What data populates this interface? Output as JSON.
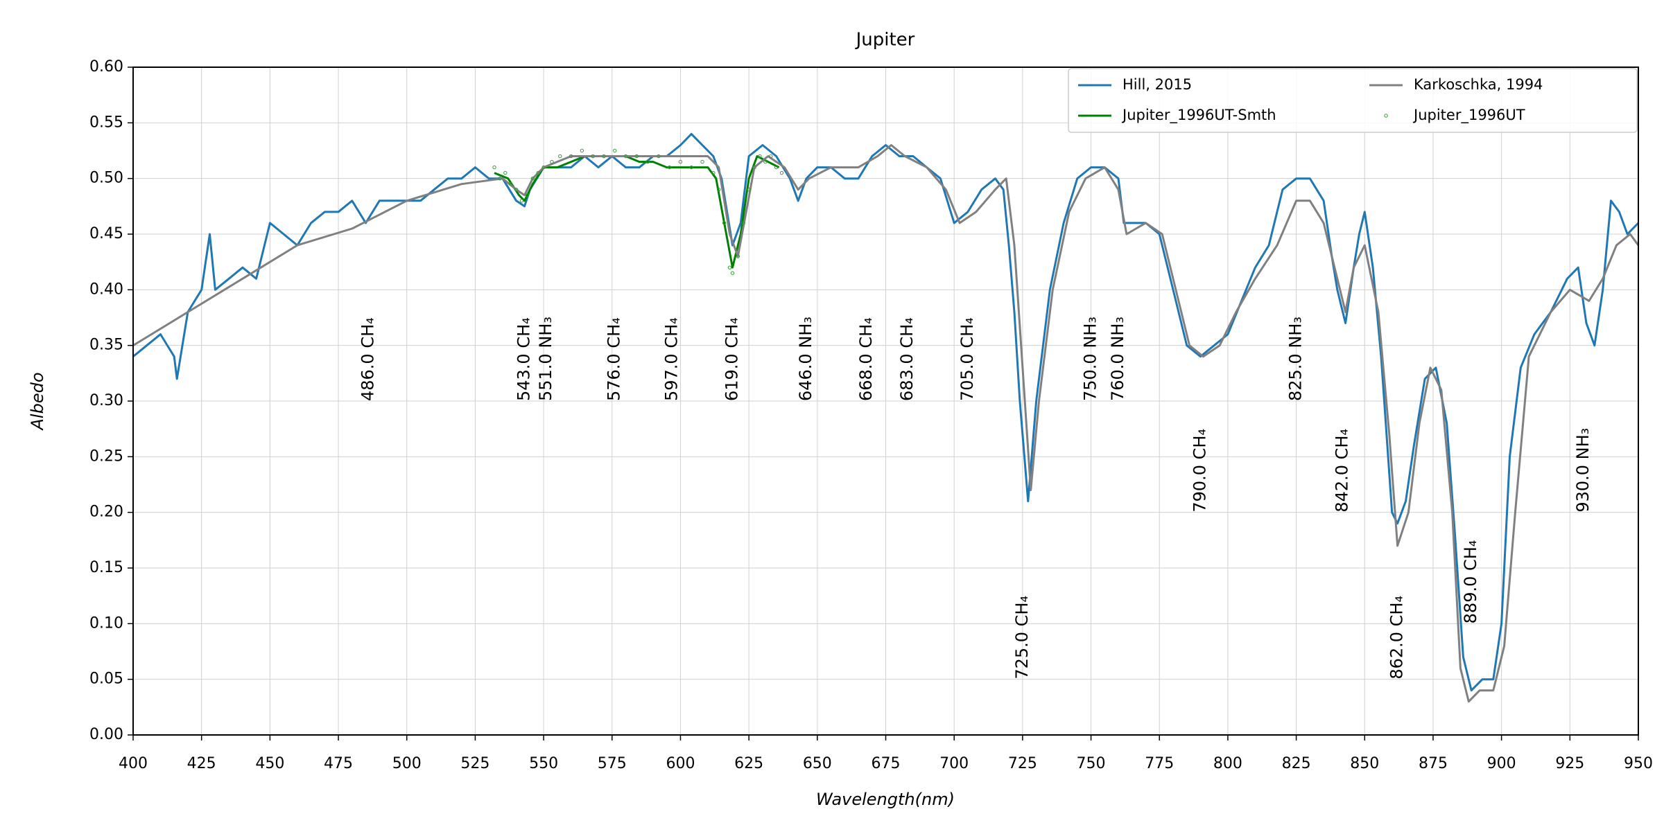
{
  "chart_data": {
    "type": "line",
    "title": "Jupiter",
    "xlabel": "Wavelength(nm)",
    "ylabel": "Albedo",
    "xlim": [
      400,
      950
    ],
    "ylim": [
      0,
      0.6
    ],
    "xticks": [
      400,
      425,
      450,
      475,
      500,
      525,
      550,
      575,
      600,
      625,
      650,
      675,
      700,
      725,
      750,
      775,
      800,
      825,
      850,
      875,
      900,
      925,
      950
    ],
    "yticks": [
      {
        "value": 0,
        "label": "0.00"
      },
      {
        "value": 0.05,
        "label": "0.05"
      },
      {
        "value": 0.1,
        "label": "0.10"
      },
      {
        "value": 0.15,
        "label": "0.15"
      },
      {
        "value": 0.2,
        "label": "0.20"
      },
      {
        "value": 0.25,
        "label": "0.25"
      },
      {
        "value": 0.3,
        "label": "0.30"
      },
      {
        "value": 0.35,
        "label": "0.35"
      },
      {
        "value": 0.4,
        "label": "0.40"
      },
      {
        "value": 0.45,
        "label": "0.45"
      },
      {
        "value": 0.5,
        "label": "0.50"
      },
      {
        "value": 0.55,
        "label": "0.55"
      },
      {
        "value": 0.6,
        "label": "0.60"
      }
    ],
    "grid": true,
    "legend": "upper right",
    "series": [
      {
        "name": "Hill, 2015",
        "color": "#1f77b4",
        "type": "line",
        "x": [
          400,
          405,
          410,
          415,
          416,
          420,
          425,
          428,
          430,
          435,
          440,
          445,
          450,
          455,
          460,
          465,
          470,
          475,
          480,
          485,
          490,
          495,
          500,
          505,
          510,
          515,
          520,
          525,
          530,
          535,
          540,
          543,
          545,
          550,
          555,
          560,
          565,
          570,
          575,
          580,
          585,
          590,
          595,
          600,
          604,
          608,
          612,
          615,
          619,
          622,
          625,
          630,
          635,
          640,
          643,
          646,
          650,
          655,
          660,
          665,
          670,
          675,
          680,
          685,
          690,
          695,
          700,
          705,
          710,
          715,
          718,
          720,
          722,
          724,
          727,
          730,
          735,
          740,
          745,
          750,
          755,
          760,
          762,
          765,
          770,
          775,
          780,
          785,
          790,
          795,
          800,
          805,
          810,
          815,
          820,
          825,
          830,
          835,
          838,
          840,
          843,
          846,
          848,
          850,
          853,
          856,
          860,
          862,
          865,
          868,
          872,
          876,
          880,
          883,
          886,
          889,
          893,
          897,
          900,
          903,
          907,
          912,
          918,
          924,
          928,
          931,
          934,
          937,
          940,
          943,
          946,
          950
        ],
        "values": [
          0.34,
          0.35,
          0.36,
          0.34,
          0.32,
          0.38,
          0.4,
          0.45,
          0.4,
          0.41,
          0.42,
          0.41,
          0.46,
          0.45,
          0.44,
          0.46,
          0.47,
          0.47,
          0.48,
          0.46,
          0.48,
          0.48,
          0.48,
          0.48,
          0.49,
          0.5,
          0.5,
          0.51,
          0.5,
          0.5,
          0.48,
          0.475,
          0.49,
          0.51,
          0.51,
          0.51,
          0.52,
          0.51,
          0.52,
          0.51,
          0.51,
          0.52,
          0.52,
          0.53,
          0.54,
          0.53,
          0.52,
          0.5,
          0.44,
          0.46,
          0.52,
          0.53,
          0.52,
          0.5,
          0.48,
          0.5,
          0.51,
          0.51,
          0.5,
          0.5,
          0.52,
          0.53,
          0.52,
          0.52,
          0.51,
          0.5,
          0.46,
          0.47,
          0.49,
          0.5,
          0.49,
          0.44,
          0.38,
          0.3,
          0.21,
          0.3,
          0.4,
          0.46,
          0.5,
          0.51,
          0.51,
          0.5,
          0.46,
          0.46,
          0.46,
          0.45,
          0.4,
          0.35,
          0.34,
          0.35,
          0.36,
          0.39,
          0.42,
          0.44,
          0.49,
          0.5,
          0.5,
          0.48,
          0.43,
          0.4,
          0.37,
          0.42,
          0.45,
          0.47,
          0.42,
          0.34,
          0.2,
          0.19,
          0.21,
          0.26,
          0.32,
          0.33,
          0.28,
          0.18,
          0.07,
          0.04,
          0.05,
          0.05,
          0.1,
          0.25,
          0.33,
          0.36,
          0.38,
          0.41,
          0.42,
          0.37,
          0.35,
          0.4,
          0.48,
          0.47,
          0.45,
          0.46
        ]
      },
      {
        "name": "Jupiter_1996UT-Smth",
        "color": "#008000",
        "type": "line",
        "x": [
          532,
          537,
          541,
          543,
          546,
          550,
          555,
          560,
          565,
          570,
          575,
          580,
          585,
          590,
          595,
          600,
          605,
          610,
          613,
          616,
          619,
          622,
          625,
          628,
          632,
          636
        ],
        "values": [
          0.505,
          0.5,
          0.485,
          0.48,
          0.495,
          0.51,
          0.51,
          0.515,
          0.52,
          0.52,
          0.52,
          0.52,
          0.515,
          0.515,
          0.51,
          0.51,
          0.51,
          0.51,
          0.5,
          0.46,
          0.42,
          0.45,
          0.5,
          0.52,
          0.515,
          0.51
        ]
      },
      {
        "name": "Karkoschka, 1994",
        "color": "#808080",
        "type": "line",
        "x": [
          400,
          420,
          440,
          460,
          480,
          500,
          520,
          535,
          540,
          543,
          546,
          550,
          560,
          570,
          580,
          590,
          600,
          610,
          614,
          618,
          621,
          624,
          627,
          632,
          638,
          643,
          647,
          655,
          665,
          672,
          677,
          682,
          690,
          697,
          702,
          708,
          715,
          719,
          722,
          725,
          728,
          731,
          736,
          742,
          748,
          755,
          760,
          763,
          770,
          776,
          781,
          786,
          791,
          797,
          803,
          810,
          818,
          825,
          830,
          835,
          840,
          843,
          846,
          850,
          855,
          859,
          862,
          866,
          870,
          874,
          878,
          882,
          885,
          888,
          892,
          897,
          901,
          905,
          910,
          918,
          925,
          932,
          937,
          942,
          947,
          950
        ],
        "values": [
          0.35,
          0.38,
          0.41,
          0.44,
          0.455,
          0.48,
          0.495,
          0.5,
          0.49,
          0.485,
          0.5,
          0.51,
          0.52,
          0.52,
          0.52,
          0.52,
          0.52,
          0.52,
          0.51,
          0.45,
          0.43,
          0.47,
          0.51,
          0.52,
          0.51,
          0.49,
          0.5,
          0.51,
          0.51,
          0.52,
          0.53,
          0.52,
          0.51,
          0.49,
          0.46,
          0.47,
          0.49,
          0.5,
          0.44,
          0.33,
          0.22,
          0.3,
          0.4,
          0.47,
          0.5,
          0.51,
          0.49,
          0.45,
          0.46,
          0.45,
          0.4,
          0.35,
          0.34,
          0.35,
          0.38,
          0.41,
          0.44,
          0.48,
          0.48,
          0.46,
          0.41,
          0.38,
          0.42,
          0.44,
          0.38,
          0.27,
          0.17,
          0.2,
          0.28,
          0.33,
          0.31,
          0.2,
          0.06,
          0.03,
          0.04,
          0.04,
          0.08,
          0.2,
          0.34,
          0.38,
          0.4,
          0.39,
          0.41,
          0.44,
          0.45,
          0.44
        ]
      },
      {
        "name": "Jupiter_1996UT",
        "color": "#2ca02c",
        "type": "scatter",
        "x": [
          532,
          534,
          536,
          538,
          540,
          542,
          544,
          546,
          548,
          550,
          553,
          556,
          560,
          564,
          568,
          572,
          576,
          580,
          584,
          588,
          592,
          596,
          600,
          604,
          608,
          612,
          614,
          616,
          618,
          619,
          621,
          623,
          625,
          627,
          629,
          631,
          633,
          635,
          637
        ],
        "values": [
          0.51,
          0.5,
          0.505,
          0.495,
          0.49,
          0.48,
          0.485,
          0.5,
          0.505,
          0.51,
          0.515,
          0.52,
          0.52,
          0.525,
          0.52,
          0.52,
          0.525,
          0.52,
          0.52,
          0.515,
          0.52,
          0.51,
          0.515,
          0.51,
          0.515,
          0.505,
          0.49,
          0.46,
          0.42,
          0.415,
          0.43,
          0.46,
          0.49,
          0.51,
          0.52,
          0.515,
          0.52,
          0.51,
          0.505
        ]
      }
    ],
    "annotations": [
      {
        "x": 486,
        "y": 0.3,
        "text": "486.0 CH₄"
      },
      {
        "x": 543,
        "y": 0.3,
        "text": "543.0 CH₄"
      },
      {
        "x": 551,
        "y": 0.3,
        "text": "551.0 NH₃"
      },
      {
        "x": 576,
        "y": 0.3,
        "text": "576.0 CH₄"
      },
      {
        "x": 597,
        "y": 0.3,
        "text": "597.0 CH₄"
      },
      {
        "x": 619,
        "y": 0.3,
        "text": "619.0 CH₄"
      },
      {
        "x": 646,
        "y": 0.3,
        "text": "646.0 NH₃"
      },
      {
        "x": 668,
        "y": 0.3,
        "text": "668.0 CH₄"
      },
      {
        "x": 683,
        "y": 0.3,
        "text": "683.0 CH₄"
      },
      {
        "x": 705,
        "y": 0.3,
        "text": "705.0 CH₄"
      },
      {
        "x": 725,
        "y": 0.05,
        "text": "725.0 CH₄"
      },
      {
        "x": 750,
        "y": 0.3,
        "text": "750.0 NH₃"
      },
      {
        "x": 760,
        "y": 0.3,
        "text": "760.0 NH₃"
      },
      {
        "x": 790,
        "y": 0.2,
        "text": "790.0 CH₄"
      },
      {
        "x": 825,
        "y": 0.3,
        "text": "825.0 NH₃"
      },
      {
        "x": 842,
        "y": 0.2,
        "text": "842.0 CH₄"
      },
      {
        "x": 862,
        "y": 0.05,
        "text": "862.0 CH₄"
      },
      {
        "x": 889,
        "y": 0.1,
        "text": "889.0 CH₄"
      },
      {
        "x": 930,
        "y": 0.2,
        "text": "930.0 NH₃"
      }
    ]
  }
}
